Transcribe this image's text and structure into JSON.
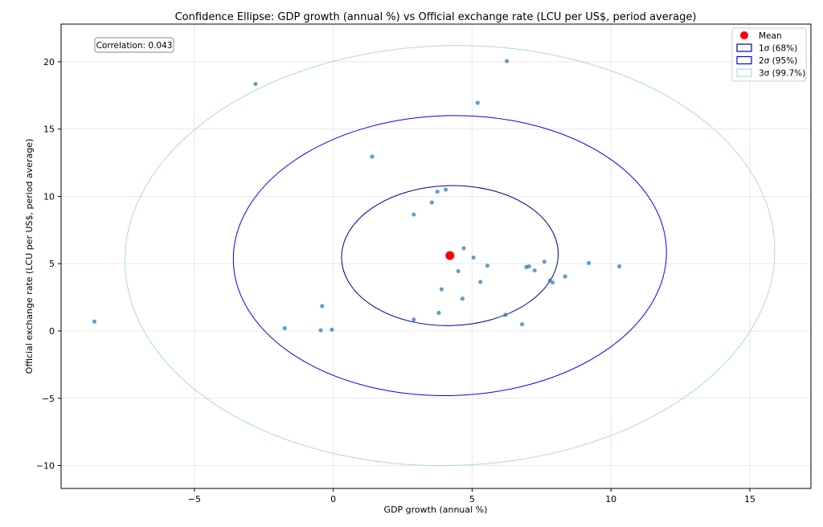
{
  "chart_data": {
    "type": "scatter",
    "title": "Confidence Ellipse: GDP growth (annual %) vs Official exchange rate (LCU per US$, period average)",
    "xlabel": "GDP growth (annual %)",
    "ylabel": "Official exchange rate (LCU per US$, period average)",
    "xlim": [
      -9.8,
      17.2
    ],
    "ylim": [
      -11.7,
      22.8
    ],
    "xticks": [
      -5,
      0,
      5,
      10,
      15
    ],
    "yticks": [
      -10,
      -5,
      0,
      5,
      10,
      15,
      20
    ],
    "xtick_labels": [
      "−5",
      "0",
      "5",
      "10",
      "15"
    ],
    "ytick_labels": [
      "−10",
      "−5",
      "0",
      "5",
      "10",
      "15",
      "20"
    ],
    "grid": true,
    "legend_position": "top-right",
    "annotation": "Correlation: 0.043",
    "points": [
      {
        "x": -8.6,
        "y": 0.7
      },
      {
        "x": -2.8,
        "y": 18.35
      },
      {
        "x": -1.75,
        "y": 0.2
      },
      {
        "x": -0.4,
        "y": 1.85
      },
      {
        "x": -0.45,
        "y": 0.05
      },
      {
        "x": -0.05,
        "y": 0.1
      },
      {
        "x": 1.4,
        "y": 12.95
      },
      {
        "x": 2.9,
        "y": 8.65
      },
      {
        "x": 2.9,
        "y": 0.85
      },
      {
        "x": 3.55,
        "y": 9.55
      },
      {
        "x": 3.75,
        "y": 10.35
      },
      {
        "x": 3.8,
        "y": 1.35
      },
      {
        "x": 3.9,
        "y": 3.1
      },
      {
        "x": 4.05,
        "y": 10.5
      },
      {
        "x": 4.5,
        "y": 4.45
      },
      {
        "x": 4.65,
        "y": 2.4
      },
      {
        "x": 4.7,
        "y": 6.15
      },
      {
        "x": 5.05,
        "y": 5.45
      },
      {
        "x": 5.2,
        "y": 16.95
      },
      {
        "x": 5.3,
        "y": 3.65
      },
      {
        "x": 5.55,
        "y": 4.85
      },
      {
        "x": 6.2,
        "y": 1.2
      },
      {
        "x": 6.25,
        "y": 20.05
      },
      {
        "x": 6.8,
        "y": 0.5
      },
      {
        "x": 6.95,
        "y": 4.75
      },
      {
        "x": 7.05,
        "y": 4.8
      },
      {
        "x": 7.25,
        "y": 4.5
      },
      {
        "x": 7.6,
        "y": 5.15
      },
      {
        "x": 7.8,
        "y": 3.75
      },
      {
        "x": 7.9,
        "y": 3.6
      },
      {
        "x": 8.35,
        "y": 4.05
      },
      {
        "x": 9.2,
        "y": 5.05
      },
      {
        "x": 10.3,
        "y": 4.8
      }
    ],
    "mean": {
      "x": 4.2,
      "y": 5.6
    },
    "ellipses": [
      {
        "label": "1σ (68%)",
        "color": "#00008b",
        "n_std": 1
      },
      {
        "label": "2σ (95%)",
        "color": "#0000ff",
        "n_std": 2
      },
      {
        "label": "3σ (99.7%)",
        "color": "#add8e6",
        "n_std": 3
      }
    ],
    "ellipse_1sigma": {
      "center": [
        4.2,
        5.6
      ],
      "rx": 3.9,
      "ry": 5.2,
      "angle": 1.5
    },
    "legend": [
      {
        "label": "Mean",
        "kind": "marker",
        "color": "#ff0000"
      },
      {
        "label": "1σ (68%)",
        "kind": "patch",
        "color": "#00008b"
      },
      {
        "label": "2σ (95%)",
        "kind": "patch",
        "color": "#0000ff"
      },
      {
        "label": "3σ (99.7%)",
        "kind": "patch",
        "color": "#add8e6"
      }
    ],
    "colors": {
      "points": "#1f77b4",
      "mean": "#ff0000",
      "grid": "#e8e8e8"
    }
  }
}
